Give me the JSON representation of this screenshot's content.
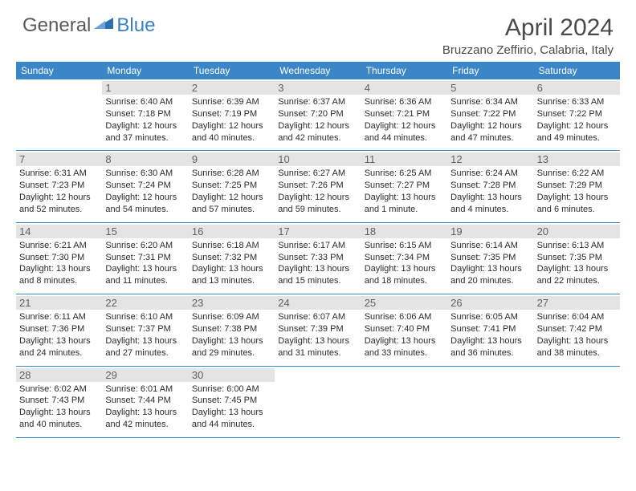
{
  "logo": {
    "text_general": "General",
    "text_blue": "Blue",
    "icon_color": "#2f6fb0"
  },
  "title": "April 2024",
  "location": "Bruzzano Zeffirio, Calabria, Italy",
  "colors": {
    "header_bg": "#3b86c7",
    "header_text": "#ffffff",
    "daynum_bg": "#e4e4e4",
    "daynum_text": "#606060",
    "body_text": "#2b2b2b",
    "border": "#3b86c7"
  },
  "weekdays": [
    "Sunday",
    "Monday",
    "Tuesday",
    "Wednesday",
    "Thursday",
    "Friday",
    "Saturday"
  ],
  "weeks": [
    [
      null,
      {
        "n": "1",
        "sunrise": "6:40 AM",
        "sunset": "7:18 PM",
        "daylight": "12 hours and 37 minutes."
      },
      {
        "n": "2",
        "sunrise": "6:39 AM",
        "sunset": "7:19 PM",
        "daylight": "12 hours and 40 minutes."
      },
      {
        "n": "3",
        "sunrise": "6:37 AM",
        "sunset": "7:20 PM",
        "daylight": "12 hours and 42 minutes."
      },
      {
        "n": "4",
        "sunrise": "6:36 AM",
        "sunset": "7:21 PM",
        "daylight": "12 hours and 44 minutes."
      },
      {
        "n": "5",
        "sunrise": "6:34 AM",
        "sunset": "7:22 PM",
        "daylight": "12 hours and 47 minutes."
      },
      {
        "n": "6",
        "sunrise": "6:33 AM",
        "sunset": "7:22 PM",
        "daylight": "12 hours and 49 minutes."
      }
    ],
    [
      {
        "n": "7",
        "sunrise": "6:31 AM",
        "sunset": "7:23 PM",
        "daylight": "12 hours and 52 minutes."
      },
      {
        "n": "8",
        "sunrise": "6:30 AM",
        "sunset": "7:24 PM",
        "daylight": "12 hours and 54 minutes."
      },
      {
        "n": "9",
        "sunrise": "6:28 AM",
        "sunset": "7:25 PM",
        "daylight": "12 hours and 57 minutes."
      },
      {
        "n": "10",
        "sunrise": "6:27 AM",
        "sunset": "7:26 PM",
        "daylight": "12 hours and 59 minutes."
      },
      {
        "n": "11",
        "sunrise": "6:25 AM",
        "sunset": "7:27 PM",
        "daylight": "13 hours and 1 minute."
      },
      {
        "n": "12",
        "sunrise": "6:24 AM",
        "sunset": "7:28 PM",
        "daylight": "13 hours and 4 minutes."
      },
      {
        "n": "13",
        "sunrise": "6:22 AM",
        "sunset": "7:29 PM",
        "daylight": "13 hours and 6 minutes."
      }
    ],
    [
      {
        "n": "14",
        "sunrise": "6:21 AM",
        "sunset": "7:30 PM",
        "daylight": "13 hours and 8 minutes."
      },
      {
        "n": "15",
        "sunrise": "6:20 AM",
        "sunset": "7:31 PM",
        "daylight": "13 hours and 11 minutes."
      },
      {
        "n": "16",
        "sunrise": "6:18 AM",
        "sunset": "7:32 PM",
        "daylight": "13 hours and 13 minutes."
      },
      {
        "n": "17",
        "sunrise": "6:17 AM",
        "sunset": "7:33 PM",
        "daylight": "13 hours and 15 minutes."
      },
      {
        "n": "18",
        "sunrise": "6:15 AM",
        "sunset": "7:34 PM",
        "daylight": "13 hours and 18 minutes."
      },
      {
        "n": "19",
        "sunrise": "6:14 AM",
        "sunset": "7:35 PM",
        "daylight": "13 hours and 20 minutes."
      },
      {
        "n": "20",
        "sunrise": "6:13 AM",
        "sunset": "7:35 PM",
        "daylight": "13 hours and 22 minutes."
      }
    ],
    [
      {
        "n": "21",
        "sunrise": "6:11 AM",
        "sunset": "7:36 PM",
        "daylight": "13 hours and 24 minutes."
      },
      {
        "n": "22",
        "sunrise": "6:10 AM",
        "sunset": "7:37 PM",
        "daylight": "13 hours and 27 minutes."
      },
      {
        "n": "23",
        "sunrise": "6:09 AM",
        "sunset": "7:38 PM",
        "daylight": "13 hours and 29 minutes."
      },
      {
        "n": "24",
        "sunrise": "6:07 AM",
        "sunset": "7:39 PM",
        "daylight": "13 hours and 31 minutes."
      },
      {
        "n": "25",
        "sunrise": "6:06 AM",
        "sunset": "7:40 PM",
        "daylight": "13 hours and 33 minutes."
      },
      {
        "n": "26",
        "sunrise": "6:05 AM",
        "sunset": "7:41 PM",
        "daylight": "13 hours and 36 minutes."
      },
      {
        "n": "27",
        "sunrise": "6:04 AM",
        "sunset": "7:42 PM",
        "daylight": "13 hours and 38 minutes."
      }
    ],
    [
      {
        "n": "28",
        "sunrise": "6:02 AM",
        "sunset": "7:43 PM",
        "daylight": "13 hours and 40 minutes."
      },
      {
        "n": "29",
        "sunrise": "6:01 AM",
        "sunset": "7:44 PM",
        "daylight": "13 hours and 42 minutes."
      },
      {
        "n": "30",
        "sunrise": "6:00 AM",
        "sunset": "7:45 PM",
        "daylight": "13 hours and 44 minutes."
      },
      null,
      null,
      null,
      null
    ]
  ],
  "labels": {
    "sunrise": "Sunrise: ",
    "sunset": "Sunset: ",
    "daylight": "Daylight: "
  }
}
